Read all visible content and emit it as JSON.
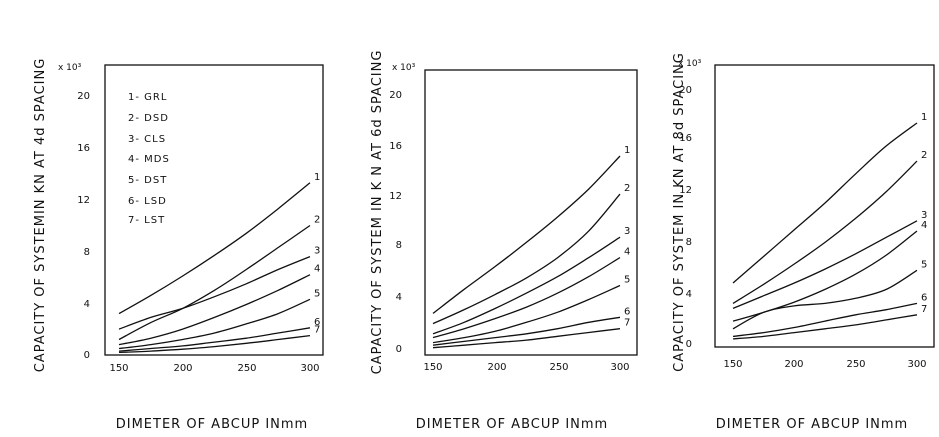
{
  "chart_data": [
    {
      "type": "line",
      "title": "",
      "ylabel": "CAPACITY OF SYSTEMIN KN AT 4d SPACING",
      "xlabel": "DIMETER OF ABCUP INmm",
      "y_multiplier": "x 10³",
      "xlim": [
        140,
        310
      ],
      "ylim": [
        0,
        22
      ],
      "xticks": [
        "150",
        "200",
        "250",
        "300"
      ],
      "yticks": [
        "0",
        "4",
        "8",
        "12",
        "16",
        "20"
      ],
      "legend": [
        "1- GRL",
        "2- DSD",
        "3- CLS",
        "4- MDS",
        "5- DST",
        "6- LSD",
        "7- LST"
      ],
      "x": [
        150,
        175,
        200,
        225,
        250,
        275,
        300
      ],
      "series": [
        {
          "name": "1",
          "values": [
            3.2,
            4.6,
            6.1,
            7.7,
            9.4,
            11.3,
            13.3
          ]
        },
        {
          "name": "2",
          "values": [
            1.2,
            2.5,
            3.6,
            5.0,
            6.6,
            8.3,
            10.0
          ]
        },
        {
          "name": "3",
          "values": [
            2.0,
            2.9,
            3.6,
            4.5,
            5.5,
            6.6,
            7.6
          ]
        },
        {
          "name": "4",
          "values": [
            0.8,
            1.3,
            2.0,
            2.9,
            3.9,
            5.0,
            6.2
          ]
        },
        {
          "name": "5",
          "values": [
            0.5,
            0.8,
            1.2,
            1.7,
            2.4,
            3.2,
            4.3
          ]
        },
        {
          "name": "6",
          "values": [
            0.3,
            0.5,
            0.7,
            1.0,
            1.3,
            1.7,
            2.1
          ]
        },
        {
          "name": "7",
          "values": [
            0.2,
            0.3,
            0.45,
            0.65,
            0.9,
            1.2,
            1.5
          ]
        }
      ]
    },
    {
      "type": "line",
      "title": "",
      "ylabel": "CAPACITY OF SYSTEM IN K N AT 6d SPACING",
      "xlabel": "DIMETER OF ABCUP INmm",
      "y_multiplier": "x 10³",
      "xlim": [
        140,
        310
      ],
      "ylim": [
        0,
        22
      ],
      "xticks": [
        "150",
        "200",
        "250",
        "300"
      ],
      "yticks": [
        "0",
        "4",
        "8",
        "12",
        "16",
        "20"
      ],
      "x": [
        150,
        175,
        200,
        225,
        250,
        275,
        300
      ],
      "series": [
        {
          "name": "1",
          "values": [
            2.8,
            4.7,
            6.5,
            8.4,
            10.4,
            12.6,
            15.2
          ]
        },
        {
          "name": "2",
          "values": [
            2.0,
            3.1,
            4.3,
            5.6,
            7.2,
            9.3,
            12.2
          ]
        },
        {
          "name": "3",
          "values": [
            1.2,
            2.1,
            3.2,
            4.4,
            5.7,
            7.2,
            8.8
          ]
        },
        {
          "name": "4",
          "values": [
            0.9,
            1.6,
            2.4,
            3.3,
            4.4,
            5.7,
            7.2
          ]
        },
        {
          "name": "5",
          "values": [
            0.5,
            0.9,
            1.4,
            2.1,
            2.9,
            3.9,
            5.0
          ]
        },
        {
          "name": "6",
          "values": [
            0.3,
            0.6,
            0.9,
            1.2,
            1.6,
            2.1,
            2.5
          ]
        },
        {
          "name": "7",
          "values": [
            0.1,
            0.3,
            0.5,
            0.7,
            1.0,
            1.3,
            1.6
          ]
        }
      ]
    },
    {
      "type": "line",
      "title": "",
      "ylabel": "CAPACITY OF SYSTEM IN KN AT 8d SPACING",
      "xlabel": "DIMETER OF ABCUP INmm",
      "y_multiplier": "x 10³",
      "xlim": [
        140,
        310
      ],
      "ylim": [
        0,
        22
      ],
      "xticks": [
        "150",
        "200",
        "250",
        "300"
      ],
      "yticks": [
        "0",
        "4",
        "8",
        "12",
        "16",
        "20"
      ],
      "x": [
        150,
        175,
        200,
        225,
        250,
        275,
        300
      ],
      "series": [
        {
          "name": "1",
          "values": [
            4.8,
            6.9,
            9.0,
            11.1,
            13.4,
            15.6,
            17.4
          ]
        },
        {
          "name": "2",
          "values": [
            3.2,
            4.7,
            6.3,
            8.0,
            9.9,
            12.0,
            14.4
          ]
        },
        {
          "name": "3",
          "values": [
            2.8,
            3.8,
            4.8,
            5.9,
            7.1,
            8.4,
            9.7
          ]
        },
        {
          "name": "4",
          "values": [
            1.8,
            2.5,
            3.3,
            4.3,
            5.5,
            7.0,
            8.9
          ]
        },
        {
          "name": "5",
          "values": [
            1.2,
            2.5,
            3.0,
            3.2,
            3.6,
            4.3,
            5.8
          ]
        },
        {
          "name": "6",
          "values": [
            0.6,
            0.9,
            1.3,
            1.8,
            2.3,
            2.7,
            3.2
          ]
        },
        {
          "name": "7",
          "values": [
            0.4,
            0.6,
            0.9,
            1.2,
            1.5,
            1.9,
            2.3
          ]
        }
      ]
    }
  ]
}
